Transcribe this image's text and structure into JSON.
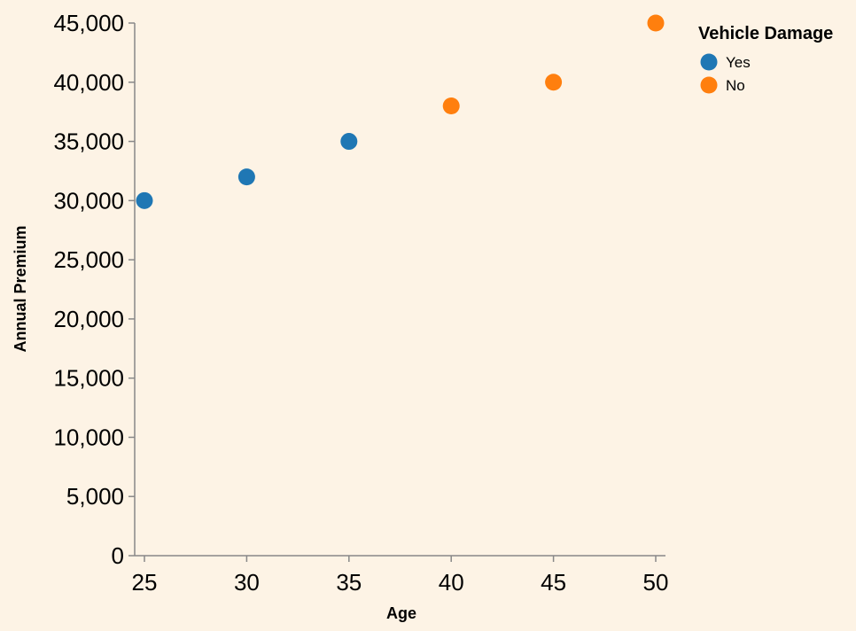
{
  "chart_data": {
    "type": "scatter",
    "xlabel": "Age",
    "ylabel": "Annual Premium",
    "xlim": [
      25,
      50
    ],
    "ylim": [
      0,
      45000
    ],
    "x_ticks": [
      25,
      30,
      35,
      40,
      45,
      50
    ],
    "y_ticks": [
      0,
      5000,
      10000,
      15000,
      20000,
      25000,
      30000,
      35000,
      40000,
      45000
    ],
    "x_tick_labels": [
      "25",
      "30",
      "35",
      "40",
      "45",
      "50"
    ],
    "y_tick_labels": [
      "0",
      "5,000",
      "10,000",
      "15,000",
      "20,000",
      "25,000",
      "30,000",
      "35,000",
      "40,000",
      "45,000"
    ],
    "grid": false,
    "legend": {
      "title": "Vehicle Damage",
      "placement": "top-right",
      "entries": [
        {
          "label": "Yes",
          "color": "#1f77b4"
        },
        {
          "label": "No",
          "color": "#ff7f0e"
        }
      ]
    },
    "series": [
      {
        "name": "Yes",
        "color": "#1f77b4",
        "points": [
          {
            "x": 25,
            "y": 30000
          },
          {
            "x": 30,
            "y": 32000
          },
          {
            "x": 35,
            "y": 35000
          }
        ]
      },
      {
        "name": "No",
        "color": "#ff7f0e",
        "points": [
          {
            "x": 40,
            "y": 38000
          },
          {
            "x": 45,
            "y": 40000
          },
          {
            "x": 50,
            "y": 45000
          }
        ]
      }
    ]
  }
}
